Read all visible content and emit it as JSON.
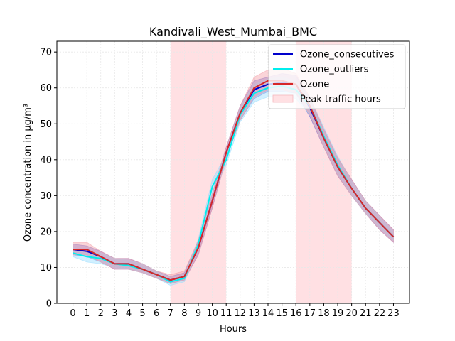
{
  "chart_data": {
    "type": "line",
    "title": "Kandivali_West_Mumbai_BMC",
    "xlabel": "Hours",
    "ylabel": "Ozone concentration in µg/m³",
    "x": [
      0,
      1,
      2,
      3,
      4,
      5,
      6,
      7,
      8,
      9,
      10,
      11,
      12,
      13,
      14,
      15,
      16,
      17,
      18,
      19,
      20,
      21,
      22,
      23
    ],
    "xlim": [
      -1.15,
      24.15
    ],
    "ylim": [
      0,
      73
    ],
    "yticks": [
      0,
      10,
      20,
      30,
      40,
      50,
      60,
      70
    ],
    "grid": true,
    "legend_position": "top-right",
    "shaded_regions": [
      {
        "name": "Peak traffic hours",
        "x_start": 7,
        "x_end": 11,
        "color": "#ffe0e3"
      },
      {
        "name": "Peak traffic hours",
        "x_start": 16,
        "x_end": 20,
        "color": "#ffe0e3"
      }
    ],
    "series": [
      {
        "name": "Ozone_consecutives",
        "color": "#0000cc",
        "band_color": "#6a6ad0",
        "values": [
          15,
          14.5,
          13,
          11,
          11,
          9.5,
          8,
          6.5,
          7.5,
          15.5,
          28.5,
          42,
          53,
          59.5,
          61,
          61.5,
          61,
          54.5,
          46,
          38,
          32,
          26.5,
          22.5,
          18.5
        ],
        "lower": [
          13.5,
          13,
          11.5,
          9.5,
          9.5,
          8.5,
          7,
          5.5,
          6.5,
          13.5,
          26.5,
          40.5,
          51,
          57,
          59,
          59,
          58.5,
          52,
          43.5,
          35.5,
          30,
          25,
          20.5,
          17
        ],
        "upper": [
          16.5,
          16,
          14.5,
          12.5,
          12.5,
          11,
          9,
          7.5,
          8.5,
          17.5,
          30.5,
          43.5,
          55,
          62,
          63,
          64,
          63.5,
          57,
          48.5,
          40.5,
          34.5,
          28.5,
          24.5,
          20.5
        ]
      },
      {
        "name": "Ozone_outliers",
        "color": "#00eeee",
        "band_color": "#99ddff",
        "values": [
          14,
          13,
          12.5,
          11,
          10.5,
          9.5,
          8,
          6,
          7,
          16.5,
          32.5,
          40,
          52.5,
          58.5,
          60,
          60.5,
          59.5,
          55,
          46.5,
          38.5,
          32,
          26.5,
          22.5,
          18.5
        ],
        "lower": [
          13,
          11.5,
          11,
          10,
          9.5,
          8.5,
          7,
          5,
          6,
          15,
          30.5,
          38.5,
          50.5,
          56,
          57.5,
          58,
          57,
          52.5,
          44,
          36,
          30,
          25,
          21,
          17.5
        ],
        "upper": [
          15.5,
          14.5,
          14,
          12.5,
          12,
          11,
          9,
          7,
          8,
          18,
          34.5,
          41.5,
          54.5,
          61,
          62.5,
          63,
          62,
          57.5,
          49,
          41,
          34,
          28.5,
          24,
          20
        ]
      },
      {
        "name": "Ozone",
        "color": "#d62728",
        "band_color": "#f3a0a8",
        "values": [
          15,
          15,
          13,
          11,
          11,
          9.5,
          8,
          6.5,
          7.5,
          15.5,
          28.5,
          42,
          53,
          60,
          62,
          62,
          61,
          55,
          46,
          38,
          32,
          26.5,
          22.5,
          18.5
        ],
        "lower": [
          13.5,
          13.5,
          11.5,
          9.5,
          9.5,
          8.5,
          7,
          5.5,
          6.5,
          13.5,
          26.5,
          40.5,
          51,
          57.5,
          59.5,
          59.5,
          58.5,
          52.5,
          43.5,
          35.5,
          30,
          25,
          20.5,
          17
        ],
        "upper": [
          17,
          17,
          14.5,
          12.5,
          12.5,
          11,
          9,
          8,
          9,
          17.5,
          30.5,
          43.5,
          55,
          63,
          65,
          65.5,
          64,
          57.5,
          48.5,
          40.5,
          34.5,
          28.5,
          24.5,
          20.5
        ]
      }
    ],
    "legend": [
      {
        "label": "Ozone_consecutives",
        "kind": "line",
        "color": "#0000cc"
      },
      {
        "label": "Ozone_outliers",
        "kind": "line",
        "color": "#00eeee"
      },
      {
        "label": "Ozone",
        "kind": "line",
        "color": "#d62728"
      },
      {
        "label": "Peak traffic hours",
        "kind": "patch",
        "color": "#ffe0e3"
      }
    ]
  }
}
